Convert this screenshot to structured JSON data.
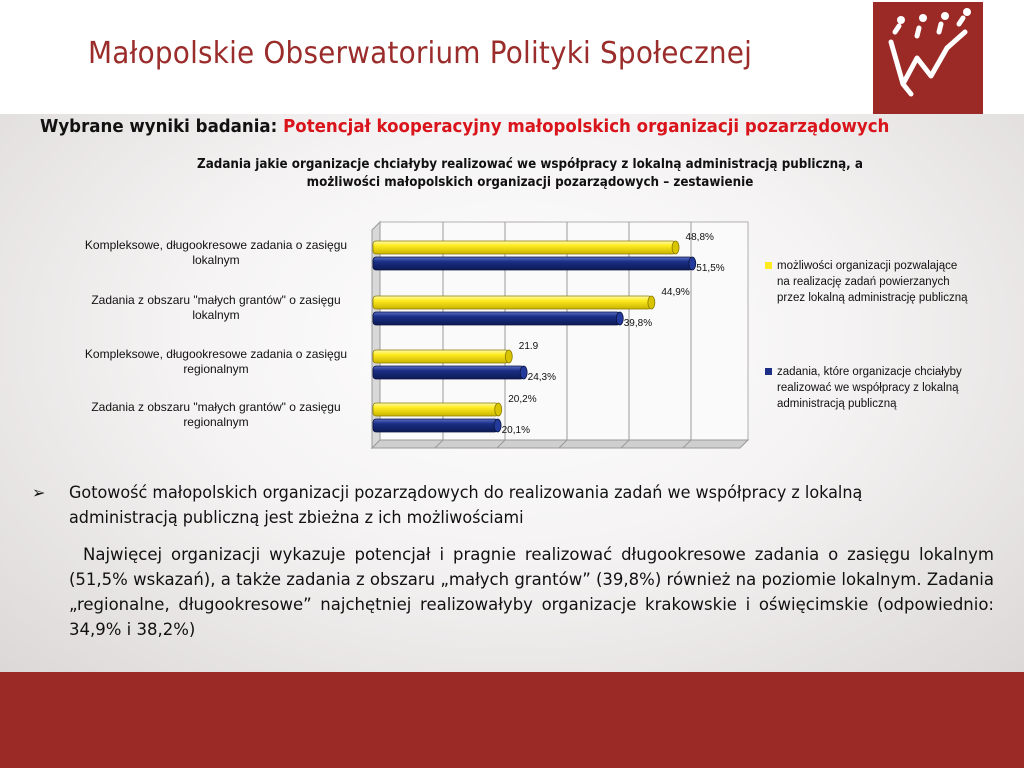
{
  "header": {
    "title": "Małopolskie Obserwatorium Polityki Społecznej"
  },
  "subheading": {
    "prefix": "Wybrane wyniki badania: ",
    "highlight": "Potencjał kooperacyjny małopolskich organizacji pozarządowych"
  },
  "colors": {
    "brand_red": "#9b2a26",
    "highlight_red": "#d9141b",
    "series_yellow": "#ffeb1f",
    "series_navy": "#1b2f86"
  },
  "chart_data": {
    "type": "bar",
    "orientation": "horizontal",
    "title_lines": [
      "Zadania jakie organizacje chciałyby realizować we współpracy z lokalną administracją publiczną, a",
      "możliwości małopolskich organizacji pozarządowych – zestawienie"
    ],
    "categories": [
      [
        "Kompleksowe, długookresowe zadania o zasięgu",
        "lokalnym"
      ],
      [
        "Zadania z obszaru \"małych grantów\" o zasięgu",
        "lokalnym"
      ],
      [
        "Kompleksowe, długookresowe zadania o zasięgu",
        "regionalnym"
      ],
      [
        "Zadania z obszaru \"małych grantów\" o zasięgu",
        "regionalnym"
      ]
    ],
    "series": [
      {
        "name": "możliwości organizacji pozwalające na realizację zadań powierzanych przez lokalną administrację publiczną",
        "legend_lines": [
          "możliwości organizacji pozwalające",
          "na realizację zadań powierzanych",
          "przez lokalną administrację publiczną"
        ],
        "color": "#ffeb1f",
        "values": [
          48.8,
          44.9,
          21.9,
          20.2
        ],
        "labels": [
          "48,8%",
          "44,9%",
          "21.9",
          "20,2%"
        ]
      },
      {
        "name": "zadania, które organizacje chciałyby realizować we współpracy z lokalną administracją publiczną",
        "legend_lines": [
          "zadania, które organizacje chciałyby",
          "realizować we współpracy z lokalną",
          "administracją publiczną"
        ],
        "color": "#1b2f86",
        "values": [
          51.5,
          39.8,
          24.3,
          20.1
        ],
        "labels": [
          "51,5%",
          "39,8%",
          "24,3%",
          "20,1%"
        ]
      }
    ],
    "xlim": [
      0,
      60
    ],
    "grid": true,
    "legend_position": "right"
  },
  "bullet": {
    "arrow": "➢",
    "lines": [
      "Gotowość małopolskich organizacji pozarządowych do  realizowania zadań we współpracy z lokalną",
      "administracją publiczną jest zbieżna z ich możliwościami"
    ],
    "paragraph": "Najwięcej organizacji wykazuje potencjał i pragnie realizować długookresowe zadania o zasięgu lokalnym (51,5% wskazań), a także zadania z obszaru „małych grantów” (39,8%) również na poziomie lokalnym. Zadania „regionalne, długookresowe” najchętniej realizowałyby organizacje krakowskie i oświęcimskie (odpowiednio: 34,9% i 38,2%)"
  }
}
